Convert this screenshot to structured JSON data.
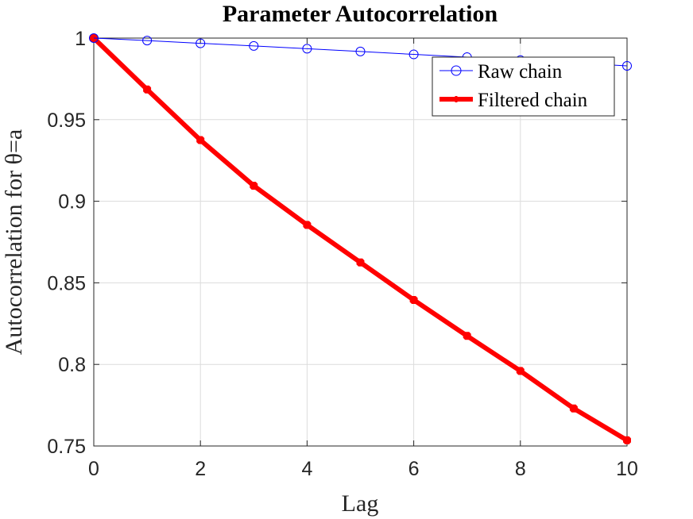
{
  "chart_data": {
    "type": "line",
    "title": "Parameter Autocorrelation",
    "xlabel": "Lag",
    "ylabel": "Autocorrelation for θ=a",
    "xlim": [
      0,
      10
    ],
    "ylim": [
      0.75,
      1
    ],
    "xticks": [
      "0",
      "2",
      "4",
      "6",
      "8",
      "10"
    ],
    "yticks": [
      "0.75",
      "0.8",
      "0.85",
      "0.9",
      "0.95",
      "1"
    ],
    "grid": true,
    "legend_position": "top-right",
    "x": [
      0,
      1,
      2,
      3,
      4,
      5,
      6,
      7,
      8,
      9,
      10
    ],
    "series": [
      {
        "name": "Raw chain",
        "color": "#0000ff",
        "marker": "circle",
        "values": [
          1.0,
          0.9985,
          0.9968,
          0.9952,
          0.9935,
          0.9918,
          0.99,
          0.9883,
          0.9865,
          0.9848,
          0.983
        ]
      },
      {
        "name": "Filtered chain",
        "color": "#ff0000",
        "marker": "asterisk",
        "values": [
          1.0,
          0.9685,
          0.9375,
          0.9095,
          0.8855,
          0.8625,
          0.8395,
          0.8175,
          0.796,
          0.773,
          0.7535
        ]
      }
    ]
  }
}
